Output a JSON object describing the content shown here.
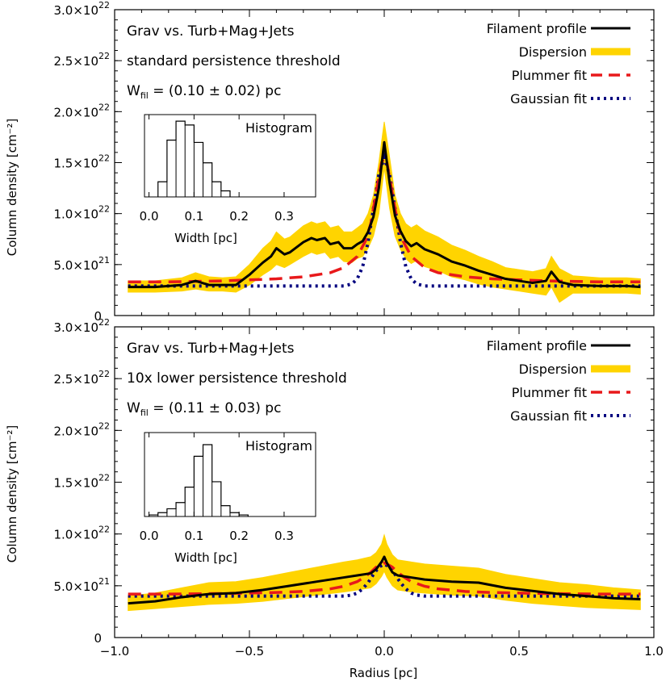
{
  "figure": {
    "xlabel": "Radius [pc]",
    "ylabel": "Column density [cm⁻²]"
  },
  "colors": {
    "profile": "#000000",
    "dispersion": "#FFD400",
    "plummer": "#E8191B",
    "gaussian": "#00007F"
  },
  "chart_data": [
    {
      "type": "line",
      "title": "",
      "xlabel": "",
      "ylabel": "Column density [cm⁻²]",
      "xlim": [
        -1.0,
        1.0
      ],
      "ylim": [
        0,
        3e+22
      ],
      "x_ticks": [
        "−1.0",
        "−0.5",
        "0.0",
        "0.5",
        "1.0"
      ],
      "y_ticks": [
        {
          "base": "3.0×10",
          "exp": "22",
          "v": 3e+22
        },
        {
          "base": "2.5×10",
          "exp": "22",
          "v": 2.5e+22
        },
        {
          "base": "2.0×10",
          "exp": "22",
          "v": 2e+22
        },
        {
          "base": "1.5×10",
          "exp": "22",
          "v": 1.5e+22
        },
        {
          "base": "1.0×10",
          "exp": "22",
          "v": 1e+22
        },
        {
          "base": "5.0×10",
          "exp": "21",
          "v": 5e+21
        },
        {
          "base": "0",
          "exp": "",
          "v": 0
        }
      ],
      "annotations": [
        "Grav vs. Turb+Mag+Jets",
        "standard persistence threshold"
      ],
      "width_label": {
        "prefix": "W",
        "sub": "fil",
        "value": " = (0.10 ± 0.02) pc"
      },
      "legend_position": "top-right",
      "legend": [
        {
          "key": "profile",
          "label": "Filament profile",
          "color": "#000000"
        },
        {
          "key": "dispersion",
          "label": "Dispersion",
          "color": "#FFD400"
        },
        {
          "key": "plummer",
          "label": "Plummer fit",
          "color": "#E8191B"
        },
        {
          "key": "gaussian",
          "label": "Gaussian fit",
          "color": "#00007F"
        }
      ],
      "series": [
        {
          "key": "profile",
          "x": [
            -0.95,
            -0.85,
            -0.75,
            -0.7,
            -0.65,
            -0.6,
            -0.55,
            -0.5,
            -0.45,
            -0.42,
            -0.4,
            -0.37,
            -0.35,
            -0.3,
            -0.27,
            -0.25,
            -0.22,
            -0.2,
            -0.17,
            -0.15,
            -0.12,
            -0.1,
            -0.08,
            -0.06,
            -0.04,
            -0.02,
            0.0,
            0.02,
            0.04,
            0.06,
            0.08,
            0.1,
            0.12,
            0.15,
            0.2,
            0.25,
            0.3,
            0.35,
            0.4,
            0.45,
            0.5,
            0.55,
            0.6,
            0.62,
            0.65,
            0.7,
            0.8,
            0.9,
            0.95
          ],
          "y": [
            2.8e+21,
            2.8e+21,
            3e+21,
            3.4e+21,
            3e+21,
            3e+21,
            3e+21,
            4e+21,
            5.2e+21,
            5.8e+21,
            6.6e+21,
            6e+21,
            6.2e+21,
            7.2e+21,
            7.6e+21,
            7.4e+21,
            7.6e+21,
            7e+21,
            7.2e+21,
            6.6e+21,
            6.6e+21,
            7e+21,
            7.3e+21,
            8.2e+21,
            9.7e+21,
            1.25e+22,
            1.7e+22,
            1.3e+22,
            9.8e+21,
            8.3e+21,
            7.3e+21,
            6.8e+21,
            7.1e+21,
            6.5e+21,
            6e+21,
            5.3e+21,
            4.9e+21,
            4.4e+21,
            4e+21,
            3.6e+21,
            3.4e+21,
            3.2e+21,
            3.4e+21,
            4.3e+21,
            3.3e+21,
            3e+21,
            2.9e+21,
            2.9e+21,
            2.8e+21
          ]
        },
        {
          "key": "dispersion",
          "x": [
            -0.95,
            -0.85,
            -0.75,
            -0.7,
            -0.65,
            -0.6,
            -0.55,
            -0.5,
            -0.45,
            -0.42,
            -0.4,
            -0.37,
            -0.35,
            -0.3,
            -0.27,
            -0.25,
            -0.22,
            -0.2,
            -0.17,
            -0.15,
            -0.12,
            -0.1,
            -0.08,
            -0.06,
            -0.04,
            -0.02,
            0.0,
            0.02,
            0.04,
            0.06,
            0.08,
            0.1,
            0.12,
            0.15,
            0.2,
            0.25,
            0.3,
            0.35,
            0.4,
            0.45,
            0.5,
            0.55,
            0.6,
            0.62,
            0.65,
            0.7,
            0.8,
            0.9,
            0.95
          ],
          "y_low": [
            2.3e+21,
            2.3e+21,
            2.4e+21,
            2.6e+21,
            2.4e+21,
            2.4e+21,
            2.3e+21,
            3e+21,
            4e+21,
            4.5e+21,
            5e+21,
            4.7e+21,
            5e+21,
            5.8e+21,
            6.2e+21,
            6e+21,
            6.2e+21,
            5.6e+21,
            5.8e+21,
            5.3e+21,
            5.2e+21,
            5.6e+21,
            5.8e+21,
            6.6e+21,
            7.8e+21,
            1e+22,
            1.45e+22,
            1.05e+22,
            7.8e+21,
            6.5e+21,
            5.6e+21,
            5.1e+21,
            5.4e+21,
            4.8e+21,
            4.4e+21,
            3.8e+21,
            3.5e+21,
            3.1e+21,
            2.8e+21,
            2.6e+21,
            2.4e+21,
            2.2e+21,
            2e+21,
            2.8e+21,
            1.3e+21,
            2.2e+21,
            2.2e+21,
            2.2e+21,
            2.1e+21
          ],
          "y_high": [
            3.4e+21,
            3.4e+21,
            3.7e+21,
            4.2e+21,
            3.8e+21,
            3.7e+21,
            3.8e+21,
            5e+21,
            6.6e+21,
            7.3e+21,
            8.2e+21,
            7.5e+21,
            7.7e+21,
            8.8e+21,
            9.2e+21,
            9e+21,
            9.2e+21,
            8.6e+21,
            8.8e+21,
            8.2e+21,
            8.2e+21,
            8.6e+21,
            9e+21,
            1e+22,
            1.18e+22,
            1.5e+22,
            1.9e+22,
            1.55e+22,
            1.18e+22,
            1e+22,
            9e+21,
            8.6e+21,
            8.9e+21,
            8.3e+21,
            7.7e+21,
            6.9e+21,
            6.4e+21,
            5.8e+21,
            5.3e+21,
            4.7e+21,
            4.5e+21,
            4.3e+21,
            4.6e+21,
            5.8e+21,
            4.6e+21,
            3.9e+21,
            3.7e+21,
            3.7e+21,
            3.6e+21
          ]
        },
        {
          "key": "plummer",
          "x": [
            -0.95,
            -0.8,
            -0.6,
            -0.5,
            -0.4,
            -0.3,
            -0.2,
            -0.15,
            -0.1,
            -0.07,
            -0.05,
            -0.03,
            -0.01,
            0.0,
            0.01,
            0.03,
            0.05,
            0.07,
            0.1,
            0.15,
            0.2,
            0.3,
            0.4,
            0.5,
            0.6,
            0.8,
            0.95
          ],
          "y": [
            3.3e+21,
            3.3e+21,
            3.4e+21,
            3.5e+21,
            3.6e+21,
            3.8e+21,
            4.2e+21,
            4.7e+21,
            5.8e+21,
            7.3e+21,
            9e+21,
            1.2e+22,
            1.5e+22,
            1.55e+22,
            1.5e+22,
            1.2e+22,
            9e+21,
            7.3e+21,
            5.8e+21,
            4.7e+21,
            4.2e+21,
            3.8e+21,
            3.6e+21,
            3.5e+21,
            3.4e+21,
            3.3e+21,
            3.3e+21
          ]
        },
        {
          "key": "gaussian",
          "x": [
            -0.95,
            -0.15,
            -0.12,
            -0.1,
            -0.08,
            -0.06,
            -0.04,
            -0.02,
            0.0,
            0.02,
            0.04,
            0.06,
            0.08,
            0.1,
            0.12,
            0.15,
            0.95
          ],
          "y": [
            2.9e+21,
            2.9e+21,
            3.1e+21,
            3.6e+21,
            4.8e+21,
            7.2e+21,
            1.05e+22,
            1.38e+22,
            1.55e+22,
            1.38e+22,
            1.05e+22,
            7.2e+21,
            4.8e+21,
            3.6e+21,
            3.1e+21,
            2.9e+21,
            2.9e+21
          ]
        }
      ],
      "histogram": {
        "title": "Histogram",
        "xlabel": "Width [pc]",
        "x_ticks": [
          "0.0",
          "0.1",
          "0.2",
          "0.3"
        ],
        "xlim": [
          -0.01,
          0.37
        ],
        "bin_edges": [
          0.02,
          0.04,
          0.06,
          0.08,
          0.1,
          0.12,
          0.14,
          0.16,
          0.18
        ],
        "counts": [
          0.2,
          0.75,
          1.0,
          0.95,
          0.72,
          0.45,
          0.2,
          0.08
        ]
      }
    },
    {
      "type": "line",
      "title": "",
      "xlabel": "Radius [pc]",
      "ylabel": "Column density [cm⁻²]",
      "xlim": [
        -1.0,
        1.0
      ],
      "ylim": [
        0,
        3e+22
      ],
      "x_ticks": [
        "−1.0",
        "−0.5",
        "0.0",
        "0.5",
        "1.0"
      ],
      "y_ticks": [
        {
          "base": "3.0×10",
          "exp": "22",
          "v": 3e+22
        },
        {
          "base": "2.5×10",
          "exp": "22",
          "v": 2.5e+22
        },
        {
          "base": "2.0×10",
          "exp": "22",
          "v": 2e+22
        },
        {
          "base": "1.5×10",
          "exp": "22",
          "v": 1.5e+22
        },
        {
          "base": "1.0×10",
          "exp": "22",
          "v": 1e+22
        },
        {
          "base": "5.0×10",
          "exp": "21",
          "v": 5e+21
        },
        {
          "base": "0",
          "exp": "",
          "v": 0
        }
      ],
      "annotations": [
        "Grav vs. Turb+Mag+Jets",
        "10x lower persistence threshold"
      ],
      "width_label": {
        "prefix": "W",
        "sub": "fil",
        "value": " = (0.11 ± 0.03) pc"
      },
      "legend_position": "top-right",
      "legend": [
        {
          "key": "profile",
          "label": "Filament profile",
          "color": "#000000"
        },
        {
          "key": "dispersion",
          "label": "Dispersion",
          "color": "#FFD400"
        },
        {
          "key": "plummer",
          "label": "Plummer fit",
          "color": "#E8191B"
        },
        {
          "key": "gaussian",
          "label": "Gaussian fit",
          "color": "#00007F"
        }
      ],
      "series": [
        {
          "key": "profile",
          "x": [
            -0.95,
            -0.85,
            -0.75,
            -0.65,
            -0.55,
            -0.45,
            -0.35,
            -0.25,
            -0.15,
            -0.1,
            -0.05,
            -0.03,
            -0.01,
            0.0,
            0.01,
            0.03,
            0.05,
            0.1,
            0.15,
            0.25,
            0.35,
            0.45,
            0.55,
            0.65,
            0.75,
            0.85,
            0.95
          ],
          "y": [
            3.3e+21,
            3.5e+21,
            3.9e+21,
            4.2e+21,
            4.3e+21,
            4.6e+21,
            5e+21,
            5.4e+21,
            5.8e+21,
            6e+21,
            6.2e+21,
            6.6e+21,
            7.3e+21,
            7.8e+21,
            7.2e+21,
            6.3e+21,
            6e+21,
            5.8e+21,
            5.6e+21,
            5.4e+21,
            5.3e+21,
            4.8e+21,
            4.5e+21,
            4.2e+21,
            4e+21,
            3.8e+21,
            3.7e+21
          ]
        },
        {
          "key": "dispersion",
          "x": [
            -0.95,
            -0.85,
            -0.75,
            -0.65,
            -0.55,
            -0.45,
            -0.35,
            -0.25,
            -0.15,
            -0.1,
            -0.05,
            -0.03,
            -0.01,
            0.0,
            0.01,
            0.03,
            0.05,
            0.1,
            0.15,
            0.25,
            0.35,
            0.45,
            0.55,
            0.65,
            0.75,
            0.85,
            0.95
          ],
          "y_low": [
            2.6e+21,
            2.8e+21,
            3e+21,
            3.2e+21,
            3.3e+21,
            3.5e+21,
            3.8e+21,
            4.1e+21,
            4.4e+21,
            4.6e+21,
            4.8e+21,
            5.2e+21,
            5.9e+21,
            6.4e+21,
            5.8e+21,
            5e+21,
            4.6e+21,
            4.4e+21,
            4.3e+21,
            4.1e+21,
            4e+21,
            3.6e+21,
            3.3e+21,
            3.1e+21,
            2.9e+21,
            2.8e+21,
            2.7e+21
          ],
          "y_high": [
            4e+21,
            4.3e+21,
            4.8e+21,
            5.3e+21,
            5.4e+21,
            5.8e+21,
            6.3e+21,
            6.8e+21,
            7.3e+21,
            7.5e+21,
            7.8e+21,
            8.2e+21,
            9e+21,
            9.9e+21,
            9e+21,
            8e+21,
            7.5e+21,
            7.3e+21,
            7.1e+21,
            6.9e+21,
            6.7e+21,
            6.1e+21,
            5.7e+21,
            5.3e+21,
            5.1e+21,
            4.8e+21,
            4.6e+21
          ]
        },
        {
          "key": "plummer",
          "x": [
            -0.95,
            -0.8,
            -0.6,
            -0.5,
            -0.4,
            -0.3,
            -0.2,
            -0.15,
            -0.1,
            -0.07,
            -0.05,
            -0.03,
            -0.01,
            0.0,
            0.01,
            0.03,
            0.05,
            0.07,
            0.1,
            0.15,
            0.2,
            0.3,
            0.4,
            0.5,
            0.6,
            0.8,
            0.95
          ],
          "y": [
            4.2e+21,
            4.2e+21,
            4.25e+21,
            4.3e+21,
            4.35e+21,
            4.45e+21,
            4.7e+21,
            4.95e+21,
            5.4e+21,
            5.9e+21,
            6.3e+21,
            6.8e+21,
            7.1e+21,
            7.2e+21,
            7.1e+21,
            6.8e+21,
            6.3e+21,
            5.9e+21,
            5.4e+21,
            4.95e+21,
            4.7e+21,
            4.45e+21,
            4.35e+21,
            4.3e+21,
            4.25e+21,
            4.2e+21,
            4.2e+21
          ]
        },
        {
          "key": "gaussian",
          "x": [
            -0.95,
            -0.15,
            -0.12,
            -0.1,
            -0.08,
            -0.06,
            -0.04,
            -0.02,
            0.0,
            0.02,
            0.04,
            0.06,
            0.08,
            0.1,
            0.12,
            0.15,
            0.95
          ],
          "y": [
            4e+21,
            4e+21,
            4.1e+21,
            4.3e+21,
            4.7e+21,
            5.3e+21,
            6.1e+21,
            6.8e+21,
            7.1e+21,
            6.8e+21,
            6.1e+21,
            5.3e+21,
            4.7e+21,
            4.3e+21,
            4.1e+21,
            4e+21,
            4e+21
          ]
        }
      ],
      "histogram": {
        "title": "Histogram",
        "xlabel": "Width [pc]",
        "x_ticks": [
          "0.0",
          "0.1",
          "0.2",
          "0.3"
        ],
        "xlim": [
          -0.01,
          0.37
        ],
        "bin_edges": [
          0.0,
          0.02,
          0.04,
          0.06,
          0.08,
          0.1,
          0.12,
          0.14,
          0.16,
          0.18,
          0.2,
          0.22
        ],
        "counts": [
          0.02,
          0.05,
          0.1,
          0.18,
          0.38,
          0.78,
          0.93,
          0.45,
          0.14,
          0.05,
          0.02
        ]
      }
    }
  ]
}
